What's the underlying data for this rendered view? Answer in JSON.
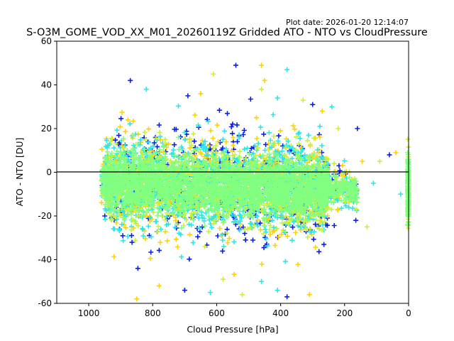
{
  "plot_date": "Plot date: 2026-01-20 12:14:07",
  "chart_data": {
    "type": "scatter",
    "title": "S-O3M_GOME_VOD_XX_M01_20260119Z Gridded ATO - NTO vs CloudPressure",
    "xlabel": "Cloud Pressure [hPa]",
    "ylabel": "ATO - NTO [DU]",
    "xlim": [
      1100,
      0
    ],
    "ylim": [
      -60,
      60
    ],
    "x_ticks": [
      1000,
      800,
      600,
      400,
      200,
      0
    ],
    "y_ticks": [
      -60,
      -40,
      -20,
      0,
      20,
      40,
      60
    ],
    "grid": false,
    "legend": "none",
    "marker": "plus",
    "zero_line": {
      "y": 0,
      "color": "#000000"
    },
    "color_groups": [
      {
        "color": "#0a1fe0",
        "role": "outer"
      },
      {
        "color": "#ffd200",
        "role": "outer"
      },
      {
        "color": "#2ee6e6",
        "role": "middle"
      },
      {
        "color": "#c8f03c",
        "role": "middle"
      },
      {
        "color": "#80ff80",
        "role": "core"
      }
    ],
    "point_cloud": {
      "description_x_range": [
        960,
        250
      ],
      "core_y_range": [
        -30,
        20
      ],
      "outliers": [
        [
          540,
          49
        ],
        [
          460,
          49
        ],
        [
          380,
          47
        ],
        [
          610,
          45
        ],
        [
          870,
          42
        ],
        [
          450,
          42
        ],
        [
          820,
          38
        ],
        [
          460,
          38
        ],
        [
          690,
          35
        ],
        [
          650,
          36
        ],
        [
          410,
          34
        ],
        [
          330,
          33
        ],
        [
          300,
          31
        ],
        [
          270,
          28
        ],
        [
          240,
          30
        ],
        [
          220,
          20
        ],
        [
          160,
          20
        ],
        [
          145,
          5
        ],
        [
          110,
          -5
        ],
        [
          90,
          5
        ],
        [
          60,
          8
        ],
        [
          40,
          9
        ],
        [
          25,
          -10
        ],
        [
          130,
          -25
        ],
        [
          165,
          -22
        ],
        [
          780,
          -52
        ],
        [
          620,
          -55
        ],
        [
          520,
          -56
        ],
        [
          380,
          -57
        ],
        [
          310,
          -56
        ],
        [
          460,
          -50
        ],
        [
          580,
          -49
        ],
        [
          700,
          -54
        ],
        [
          850,
          -58
        ],
        [
          410,
          -54
        ]
      ]
    }
  }
}
